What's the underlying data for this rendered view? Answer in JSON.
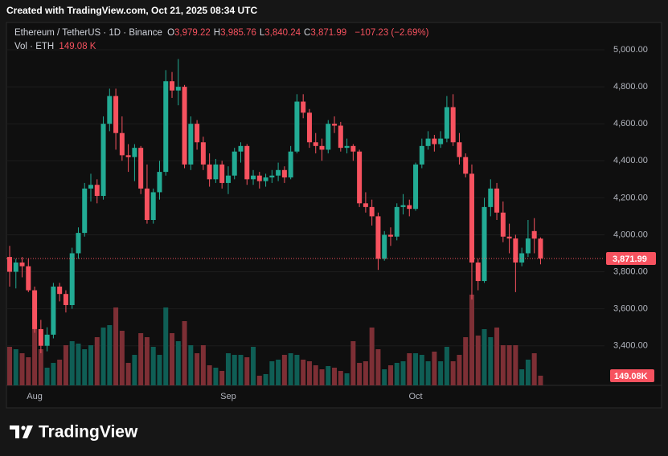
{
  "header": {
    "created": "Created with TradingView.com, Oct 21, 2025 08:34 UTC"
  },
  "legend": {
    "symbol": "Ethereum / TetherUS · 1D · Binance",
    "ohlc": [
      {
        "key": "O",
        "value": "3,979.22"
      },
      {
        "key": "H",
        "value": "3,985.76"
      },
      {
        "key": "L",
        "value": "3,840.24"
      },
      {
        "key": "C",
        "value": "3,871.99"
      }
    ],
    "change": "−107.23 (−2.69%)",
    "volume_name": "Vol · ETH",
    "volume_value": "149.08 K"
  },
  "footer": {
    "brand": "TradingView"
  },
  "chart_data": {
    "type": "candlestick",
    "categories": [
      null,
      null,
      null,
      null,
      "Aug",
      null,
      null,
      null,
      null,
      null,
      null,
      null,
      null,
      null,
      null,
      null,
      null,
      null,
      null,
      null,
      null,
      null,
      null,
      null,
      null,
      null,
      null,
      null,
      null,
      null,
      null,
      null,
      null,
      null,
      null,
      "Sep",
      null,
      null,
      null,
      null,
      null,
      null,
      null,
      null,
      null,
      null,
      null,
      null,
      null,
      null,
      null,
      null,
      null,
      null,
      null,
      null,
      null,
      null,
      null,
      null,
      null,
      null,
      null,
      null,
      null,
      "Oct",
      null,
      null,
      null,
      null,
      null,
      null,
      null,
      null,
      null,
      null,
      null,
      null,
      null,
      null,
      null,
      null,
      null,
      null,
      null,
      null
    ],
    "open": [
      3880,
      3800,
      3850,
      3830,
      3700,
      3490,
      3400,
      3460,
      3720,
      3680,
      3620,
      3900,
      4010,
      4250,
      4270,
      4210,
      4600,
      4750,
      4550,
      4430,
      4420,
      4470,
      4250,
      4080,
      4230,
      4340,
      4830,
      4780,
      4800,
      4380,
      4600,
      4500,
      4380,
      4300,
      4380,
      4280,
      4320,
      4450,
      4480,
      4300,
      4320,
      4290,
      4310,
      4320,
      4350,
      4310,
      4450,
      4720,
      4660,
      4500,
      4480,
      4460,
      4600,
      4590,
      4470,
      4480,
      4450,
      4170,
      4150,
      4100,
      3870,
      4000,
      3990,
      4150,
      4160,
      4140,
      4380,
      4480,
      4520,
      4490,
      4520,
      4690,
      4500,
      4420,
      4330,
      3850,
      3750,
      4150,
      4250,
      4120,
      3990,
      3980,
      3850,
      3900,
      4020,
      3979.22
    ],
    "high": [
      3940,
      3870,
      3880,
      3870,
      3720,
      3540,
      3500,
      3740,
      3740,
      3700,
      3930,
      4040,
      4280,
      4330,
      4300,
      4640,
      4790,
      4790,
      4640,
      4490,
      4490,
      4480,
      4380,
      4250,
      4400,
      4890,
      4880,
      4950,
      4810,
      4640,
      4620,
      4530,
      4440,
      4410,
      4400,
      4370,
      4470,
      4500,
      4490,
      4350,
      4340,
      4330,
      4350,
      4390,
      4370,
      4480,
      4760,
      4760,
      4680,
      4550,
      4520,
      4620,
      4640,
      4610,
      4520,
      4490,
      4460,
      4230,
      4190,
      4120,
      4020,
      4040,
      4170,
      4220,
      4190,
      4390,
      4520,
      4560,
      4540,
      4560,
      4750,
      4760,
      4550,
      4440,
      4380,
      3870,
      4200,
      4300,
      4280,
      4180,
      4060,
      4000,
      3930,
      4080,
      4090,
      3985.76
    ],
    "low": [
      3720,
      3710,
      3770,
      3690,
      3470,
      3360,
      3370,
      3440,
      3640,
      3580,
      3600,
      3870,
      3990,
      4180,
      4170,
      4190,
      4560,
      4460,
      4400,
      4340,
      4290,
      4220,
      4060,
      4060,
      4190,
      4320,
      4740,
      4700,
      4360,
      4350,
      4460,
      4350,
      4260,
      4280,
      4250,
      4220,
      4300,
      4390,
      4270,
      4270,
      4250,
      4260,
      4280,
      4290,
      4280,
      4300,
      4440,
      4630,
      4470,
      4440,
      4400,
      4440,
      4550,
      4450,
      4440,
      4400,
      4150,
      4120,
      4050,
      3810,
      3860,
      3940,
      3970,
      4110,
      4100,
      4130,
      4360,
      4460,
      4450,
      4470,
      4500,
      4480,
      4380,
      4310,
      3650,
      3700,
      3740,
      4100,
      4080,
      3960,
      3900,
      3690,
      3830,
      3880,
      3900,
      3840.24
    ],
    "close": [
      3800,
      3850,
      3830,
      3700,
      3490,
      3400,
      3460,
      3720,
      3680,
      3620,
      3900,
      4010,
      4250,
      4270,
      4210,
      4600,
      4750,
      4550,
      4430,
      4420,
      4470,
      4250,
      4080,
      4230,
      4340,
      4830,
      4780,
      4800,
      4380,
      4600,
      4500,
      4380,
      4300,
      4380,
      4280,
      4320,
      4450,
      4480,
      4300,
      4320,
      4290,
      4310,
      4320,
      4350,
      4310,
      4450,
      4720,
      4660,
      4500,
      4480,
      4460,
      4600,
      4590,
      4470,
      4480,
      4450,
      4170,
      4150,
      4100,
      3870,
      4000,
      3990,
      4150,
      4160,
      4140,
      4380,
      4480,
      4520,
      4490,
      4520,
      4690,
      4500,
      4420,
      4330,
      3850,
      3750,
      4150,
      4250,
      4120,
      3990,
      3980,
      3850,
      3900,
      3980,
      3979.22,
      3871.99
    ],
    "volume": [
      595,
      558,
      496,
      434,
      868,
      558,
      273,
      347,
      397,
      620,
      682,
      645,
      558,
      620,
      744,
      893,
      930,
      1203,
      843,
      347,
      471,
      806,
      744,
      595,
      471,
      1203,
      806,
      682,
      992,
      620,
      496,
      620,
      310,
      273,
      223,
      496,
      471,
      471,
      434,
      595,
      149,
      174,
      372,
      397,
      471,
      496,
      471,
      397,
      372,
      310,
      248,
      298,
      273,
      223,
      186,
      682,
      347,
      372,
      893,
      558,
      248,
      310,
      347,
      372,
      496,
      496,
      471,
      372,
      521,
      372,
      595,
      372,
      471,
      744,
      1401,
      769,
      868,
      744,
      893,
      620,
      620,
      620,
      248,
      397,
      496,
      149.08
    ],
    "colors": {
      "up": "#22ab94",
      "down": "#f7525f",
      "volume_up": "#0f5e55",
      "volume_down": "#7d2f35"
    },
    "last_price_label": "3,871.99",
    "volume_label": "149.08K",
    "ylim": [
      3186,
      5139
    ],
    "yticks": [
      {
        "value": 3400,
        "label": "3,400.00"
      },
      {
        "value": 3600,
        "label": "3,600.00"
      },
      {
        "value": 3800,
        "label": "3,800.00"
      },
      {
        "value": 4000,
        "label": "4,000.00"
      },
      {
        "value": 4200,
        "label": "4,200.00"
      },
      {
        "value": 4400,
        "label": "4,400.00"
      },
      {
        "value": 4600,
        "label": "4,600.00"
      },
      {
        "value": 4800,
        "label": "4,800.00"
      },
      {
        "value": 5000,
        "label": "5,000.00"
      }
    ],
    "grid": true
  }
}
